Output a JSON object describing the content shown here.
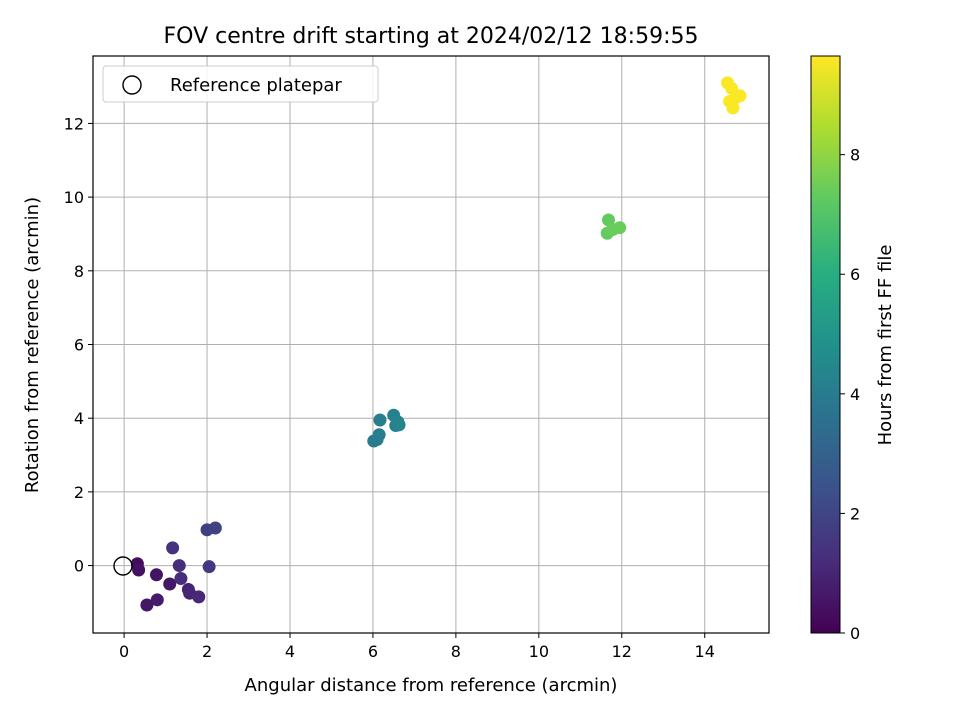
{
  "chart_data": {
    "type": "scatter",
    "title": "FOV centre drift starting at 2024/02/12 18:59:55",
    "xlabel": "Angular distance from reference (arcmin)",
    "ylabel": "Rotation from reference (arcmin)",
    "xlim": [
      -0.75,
      15.55
    ],
    "ylim": [
      -1.83,
      13.83
    ],
    "xticks": [
      0,
      2,
      4,
      6,
      8,
      10,
      12,
      14
    ],
    "yticks": [
      0,
      2,
      4,
      6,
      8,
      10,
      12
    ],
    "grid": true,
    "legend": {
      "position": "top-left",
      "entries": [
        "Reference platepar"
      ]
    },
    "reference_point": {
      "x": 0,
      "y": 0,
      "label": "Reference platepar"
    },
    "colorbar": {
      "label": "Hours from first FF file",
      "range": [
        0,
        9.65
      ],
      "ticks": [
        0,
        2,
        4,
        6,
        8
      ],
      "colormap": "viridis"
    },
    "points": [
      {
        "x": 0.32,
        "y": 0.05,
        "hours": 0.3
      },
      {
        "x": 0.35,
        "y": -0.12,
        "hours": 0.4
      },
      {
        "x": 0.55,
        "y": -1.07,
        "hours": 0.6
      },
      {
        "x": 0.78,
        "y": -0.25,
        "hours": 0.5
      },
      {
        "x": 0.8,
        "y": -0.93,
        "hours": 0.7
      },
      {
        "x": 1.1,
        "y": -0.5,
        "hours": 0.6
      },
      {
        "x": 1.17,
        "y": 0.48,
        "hours": 1.4
      },
      {
        "x": 1.33,
        "y": 0.0,
        "hours": 1.3
      },
      {
        "x": 1.37,
        "y": -0.35,
        "hours": 1.2
      },
      {
        "x": 1.55,
        "y": -0.65,
        "hours": 0.9
      },
      {
        "x": 1.58,
        "y": -0.75,
        "hours": 1.0
      },
      {
        "x": 1.8,
        "y": -0.85,
        "hours": 1.1
      },
      {
        "x": 2.0,
        "y": 0.97,
        "hours": 1.8
      },
      {
        "x": 2.05,
        "y": -0.03,
        "hours": 1.6
      },
      {
        "x": 2.2,
        "y": 1.02,
        "hours": 1.9
      },
      {
        "x": 6.02,
        "y": 3.38,
        "hours": 4.0
      },
      {
        "x": 6.1,
        "y": 3.42,
        "hours": 4.0
      },
      {
        "x": 6.15,
        "y": 3.55,
        "hours": 4.1
      },
      {
        "x": 6.17,
        "y": 3.95,
        "hours": 4.1
      },
      {
        "x": 6.5,
        "y": 4.08,
        "hours": 4.2
      },
      {
        "x": 6.55,
        "y": 3.8,
        "hours": 4.2
      },
      {
        "x": 6.6,
        "y": 3.9,
        "hours": 4.3
      },
      {
        "x": 6.63,
        "y": 3.82,
        "hours": 4.3
      },
      {
        "x": 11.65,
        "y": 9.02,
        "hours": 7.3
      },
      {
        "x": 11.68,
        "y": 9.38,
        "hours": 7.3
      },
      {
        "x": 11.78,
        "y": 9.12,
        "hours": 7.4
      },
      {
        "x": 11.95,
        "y": 9.17,
        "hours": 7.4
      },
      {
        "x": 14.55,
        "y": 13.1,
        "hours": 9.6
      },
      {
        "x": 14.6,
        "y": 12.6,
        "hours": 9.6
      },
      {
        "x": 14.65,
        "y": 12.95,
        "hours": 9.6
      },
      {
        "x": 14.68,
        "y": 12.42,
        "hours": 9.6
      },
      {
        "x": 14.75,
        "y": 12.7,
        "hours": 9.6
      },
      {
        "x": 14.85,
        "y": 12.75,
        "hours": 9.6
      }
    ]
  }
}
